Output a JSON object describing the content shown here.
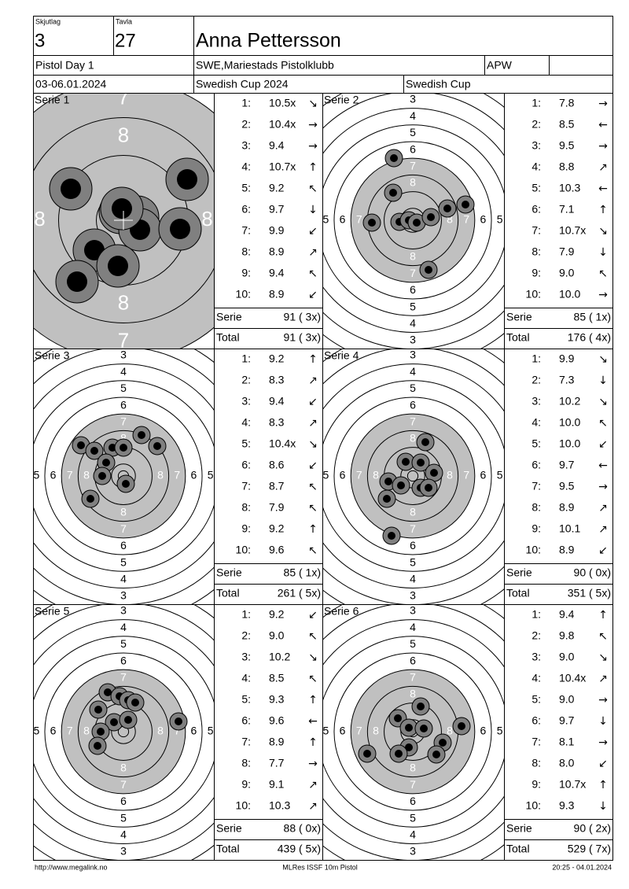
{
  "header": {
    "squad_label": "Skjutlag",
    "squad": "3",
    "lane_label": "Tavla",
    "lane": "27",
    "name": "Anna Pettersson",
    "event": "Pistol Day 1",
    "club": "SWE,Mariestads Pistolklubb",
    "class": "APW",
    "dates": "03-06.01.2024",
    "competition": "Swedish Cup 2024",
    "cup": "Swedish Cup"
  },
  "target": {
    "ring_labels": [
      "3",
      "4",
      "5",
      "6",
      "7",
      "8"
    ]
  },
  "series": [
    {
      "title": "Serie 1",
      "shots": [
        {
          "no": "1:",
          "score": "10.5x",
          "dir": "↘"
        },
        {
          "no": "2:",
          "score": "10.4x",
          "dir": "→"
        },
        {
          "no": "3:",
          "score": "9.4",
          "dir": "→"
        },
        {
          "no": "4:",
          "score": "10.7x",
          "dir": "↑"
        },
        {
          "no": "5:",
          "score": "9.2",
          "dir": "↖"
        },
        {
          "no": "6:",
          "score": "9.7",
          "dir": "↓"
        },
        {
          "no": "7:",
          "score": "9.9",
          "dir": "↙"
        },
        {
          "no": "8:",
          "score": "8.9",
          "dir": "↗"
        },
        {
          "no": "9:",
          "score": "9.4",
          "dir": "↖"
        },
        {
          "no": "10:",
          "score": "8.9",
          "dir": "↙"
        }
      ],
      "serie": {
        "label": "Serie",
        "value": "91 ( 3x)"
      },
      "total": {
        "label": "Total",
        "value": "91 ( 3x)"
      }
    },
    {
      "title": "Serie 2",
      "shots": [
        {
          "no": "1:",
          "score": "7.8",
          "dir": "→"
        },
        {
          "no": "2:",
          "score": "8.5",
          "dir": "←"
        },
        {
          "no": "3:",
          "score": "9.5",
          "dir": "→"
        },
        {
          "no": "4:",
          "score": "8.8",
          "dir": "↗"
        },
        {
          "no": "5:",
          "score": "10.3",
          "dir": "←"
        },
        {
          "no": "6:",
          "score": "7.1",
          "dir": "↑"
        },
        {
          "no": "7:",
          "score": "10.7x",
          "dir": "↘"
        },
        {
          "no": "8:",
          "score": "7.9",
          "dir": "↓"
        },
        {
          "no": "9:",
          "score": "9.0",
          "dir": "↖"
        },
        {
          "no": "10:",
          "score": "10.0",
          "dir": "→"
        }
      ],
      "serie": {
        "label": "Serie",
        "value": "85 ( 1x)"
      },
      "total": {
        "label": "Total",
        "value": "176 ( 4x)"
      }
    },
    {
      "title": "Serie 3",
      "shots": [
        {
          "no": "1:",
          "score": "9.2",
          "dir": "↑"
        },
        {
          "no": "2:",
          "score": "8.3",
          "dir": "↗"
        },
        {
          "no": "3:",
          "score": "9.4",
          "dir": "↙"
        },
        {
          "no": "4:",
          "score": "8.3",
          "dir": "↗"
        },
        {
          "no": "5:",
          "score": "10.4x",
          "dir": "↘"
        },
        {
          "no": "6:",
          "score": "8.6",
          "dir": "↙"
        },
        {
          "no": "7:",
          "score": "8.7",
          "dir": "↖"
        },
        {
          "no": "8:",
          "score": "7.9",
          "dir": "↖"
        },
        {
          "no": "9:",
          "score": "9.2",
          "dir": "↑"
        },
        {
          "no": "10:",
          "score": "9.6",
          "dir": "↖"
        }
      ],
      "serie": {
        "label": "Serie",
        "value": "85 ( 1x)"
      },
      "total": {
        "label": "Total",
        "value": "261 ( 5x)"
      }
    },
    {
      "title": "Serie 4",
      "shots": [
        {
          "no": "1:",
          "score": "9.9",
          "dir": "↘"
        },
        {
          "no": "2:",
          "score": "7.3",
          "dir": "↓"
        },
        {
          "no": "3:",
          "score": "10.2",
          "dir": "↘"
        },
        {
          "no": "4:",
          "score": "10.0",
          "dir": "↖"
        },
        {
          "no": "5:",
          "score": "10.0",
          "dir": "↙"
        },
        {
          "no": "6:",
          "score": "9.7",
          "dir": "←"
        },
        {
          "no": "7:",
          "score": "9.5",
          "dir": "→"
        },
        {
          "no": "8:",
          "score": "8.9",
          "dir": "↗"
        },
        {
          "no": "9:",
          "score": "10.1",
          "dir": "↗"
        },
        {
          "no": "10:",
          "score": "8.9",
          "dir": "↙"
        }
      ],
      "serie": {
        "label": "Serie",
        "value": "90 ( 0x)"
      },
      "total": {
        "label": "Total",
        "value": "351 ( 5x)"
      }
    },
    {
      "title": "Serie 5",
      "shots": [
        {
          "no": "1:",
          "score": "9.2",
          "dir": "↙"
        },
        {
          "no": "2:",
          "score": "9.0",
          "dir": "↖"
        },
        {
          "no": "3:",
          "score": "10.2",
          "dir": "↘"
        },
        {
          "no": "4:",
          "score": "8.5",
          "dir": "↖"
        },
        {
          "no": "5:",
          "score": "9.3",
          "dir": "↑"
        },
        {
          "no": "6:",
          "score": "9.6",
          "dir": "←"
        },
        {
          "no": "7:",
          "score": "8.9",
          "dir": "↑"
        },
        {
          "no": "8:",
          "score": "7.7",
          "dir": "→"
        },
        {
          "no": "9:",
          "score": "9.1",
          "dir": "↗"
        },
        {
          "no": "10:",
          "score": "10.3",
          "dir": "↗"
        }
      ],
      "serie": {
        "label": "Serie",
        "value": "88 ( 0x)"
      },
      "total": {
        "label": "Total",
        "value": "439 ( 5x)"
      }
    },
    {
      "title": "Serie 6",
      "shots": [
        {
          "no": "1:",
          "score": "9.4",
          "dir": "↑"
        },
        {
          "no": "2:",
          "score": "9.8",
          "dir": "↖"
        },
        {
          "no": "3:",
          "score": "9.0",
          "dir": "↘"
        },
        {
          "no": "4:",
          "score": "10.4x",
          "dir": "↗"
        },
        {
          "no": "5:",
          "score": "9.0",
          "dir": "→"
        },
        {
          "no": "6:",
          "score": "9.7",
          "dir": "↓"
        },
        {
          "no": "7:",
          "score": "8.1",
          "dir": "→"
        },
        {
          "no": "8:",
          "score": "8.0",
          "dir": "↙"
        },
        {
          "no": "9:",
          "score": "10.7x",
          "dir": "↑"
        },
        {
          "no": "10:",
          "score": "9.3",
          "dir": "↓"
        }
      ],
      "serie": {
        "label": "Serie",
        "value": "90 ( 2x)"
      },
      "total": {
        "label": "Total",
        "value": "529 ( 7x)"
      }
    }
  ],
  "footer": {
    "url": "http://www.megalink.no",
    "software": "MLRes ISSF 10m Pistol",
    "timestamp": "20:25 - 04.01.2024"
  }
}
